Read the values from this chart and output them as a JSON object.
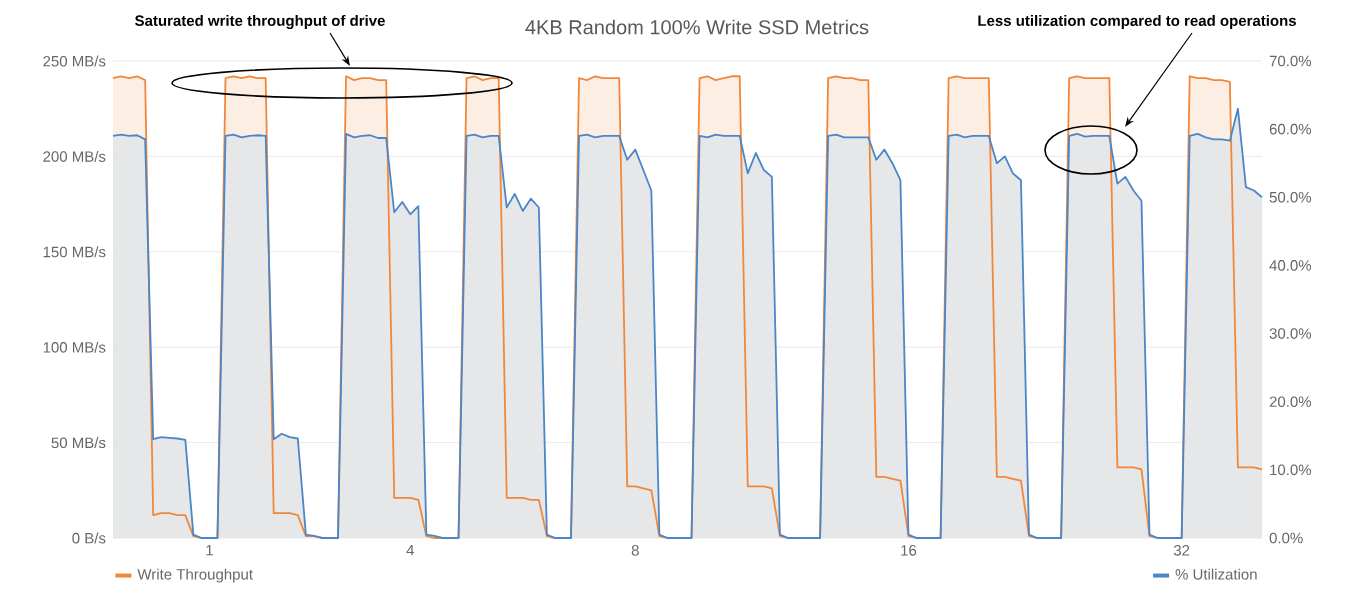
{
  "chart_data": {
    "type": "area",
    "title": "4KB Random 100% Write SSD Metrics",
    "annotations": [
      "Saturated write throughput of drive",
      "Less utilization compared to read operations"
    ],
    "categories": [
      null,
      null,
      null,
      null,
      null,
      null,
      null,
      null,
      null,
      null,
      null,
      null,
      "1",
      null,
      null,
      null,
      null,
      null,
      null,
      null,
      null,
      null,
      null,
      null,
      null,
      null,
      null,
      null,
      null,
      null,
      null,
      null,
      null,
      null,
      null,
      null,
      null,
      "4",
      null,
      null,
      null,
      null,
      null,
      null,
      null,
      null,
      null,
      null,
      null,
      null,
      null,
      null,
      null,
      null,
      null,
      null,
      null,
      null,
      null,
      null,
      null,
      null,
      null,
      null,
      null,
      "8",
      null,
      null,
      null,
      null,
      null,
      null,
      null,
      null,
      null,
      null,
      null,
      null,
      null,
      null,
      null,
      null,
      null,
      null,
      null,
      null,
      null,
      null,
      null,
      null,
      null,
      null,
      null,
      null,
      null,
      null,
      null,
      null,
      null,
      "16",
      null,
      null,
      null,
      null,
      null,
      null,
      null,
      null,
      null,
      null,
      null,
      null,
      null,
      null,
      null,
      null,
      null,
      null,
      null,
      null,
      null,
      null,
      null,
      null,
      null,
      null,
      null,
      null,
      null,
      null,
      null,
      null,
      null,
      "32",
      null,
      null,
      null,
      null,
      null,
      null,
      null,
      null,
      null,
      null
    ],
    "ylim": [
      0,
      250
    ],
    "yticks": [
      {
        "value": 0,
        "label": "0 B/s"
      },
      {
        "value": 50,
        "label": "50 MB/s"
      },
      {
        "value": 100,
        "label": "100 MB/s"
      },
      {
        "value": 150,
        "label": "150 MB/s"
      },
      {
        "value": 200,
        "label": "200 MB/s"
      },
      {
        "value": 250,
        "label": "250 MB/s"
      }
    ],
    "y2lim": [
      0,
      70
    ],
    "y2ticks": [
      {
        "value": 0,
        "label": "0.0%"
      },
      {
        "value": 10,
        "label": "10.0%"
      },
      {
        "value": 20,
        "label": "20.0%"
      },
      {
        "value": 30,
        "label": "30.0%"
      },
      {
        "value": 40,
        "label": "40.0%"
      },
      {
        "value": 50,
        "label": "50.0%"
      },
      {
        "value": 60,
        "label": "60.0%"
      },
      {
        "value": 70,
        "label": "70.0%"
      }
    ],
    "grid": "y",
    "legend": "bottom",
    "series": [
      {
        "name": "Write Throughput",
        "color": "#f0883c",
        "values": [
          241,
          242,
          241,
          242,
          240,
          12,
          13,
          13,
          12,
          12,
          1,
          0,
          0,
          0,
          241,
          242,
          241,
          242,
          241,
          241,
          13,
          13,
          13,
          12,
          1,
          1,
          0,
          0,
          0,
          242,
          240,
          241,
          241,
          240,
          240,
          21,
          21,
          21,
          20,
          1,
          0,
          0,
          0,
          0,
          241,
          242,
          240,
          241,
          241,
          21,
          21,
          21,
          20,
          20,
          1,
          0,
          0,
          0,
          241,
          240,
          242,
          241,
          241,
          241,
          27,
          27,
          26,
          25,
          1,
          0,
          0,
          0,
          0,
          241,
          242,
          240,
          241,
          242,
          242,
          27,
          27,
          27,
          26,
          1,
          0,
          0,
          0,
          0,
          0,
          241,
          242,
          241,
          241,
          240,
          240,
          32,
          32,
          31,
          30,
          1,
          0,
          0,
          0,
          0,
          241,
          242,
          241,
          241,
          241,
          241,
          32,
          32,
          31,
          30,
          1,
          0,
          0,
          0,
          0,
          241,
          242,
          241,
          241,
          241,
          241,
          37,
          37,
          37,
          36,
          1,
          0,
          0,
          0,
          0,
          242,
          241,
          241,
          240,
          240,
          239,
          37,
          37,
          37,
          36
        ]
      },
      {
        "name": "% Utilization",
        "color": "#4a86c8",
        "axis": "y2",
        "values": [
          59,
          59.2,
          59,
          59.1,
          58.5,
          14.5,
          14.8,
          14.7,
          14.6,
          14.4,
          0.5,
          0,
          0,
          0,
          59,
          59.2,
          58.8,
          59,
          59.1,
          59,
          14.5,
          15.3,
          14.8,
          14.6,
          0.5,
          0.3,
          0,
          0,
          0,
          59.3,
          58.8,
          59,
          59.1,
          58.7,
          58.7,
          47.8,
          49.3,
          47.5,
          48.7,
          0.5,
          0.3,
          0,
          0,
          0,
          59,
          59.2,
          58.8,
          59,
          59,
          48.5,
          50.5,
          48,
          49.8,
          48.5,
          0.5,
          0,
          0,
          0,
          59,
          59.2,
          58.8,
          59,
          59,
          59,
          55.5,
          57,
          54,
          51,
          0.5,
          0,
          0,
          0,
          0,
          59,
          58.8,
          59.2,
          59,
          59,
          59,
          53.5,
          56.5,
          54,
          53,
          0.5,
          0,
          0,
          0,
          0,
          0,
          59,
          59.2,
          58.8,
          58.8,
          58.8,
          58.8,
          55.5,
          57,
          55,
          52.5,
          0.5,
          0,
          0,
          0,
          0,
          59,
          59.2,
          58.8,
          59,
          59,
          59,
          55,
          56,
          53.5,
          52.5,
          0.5,
          0,
          0,
          0,
          0,
          59,
          59.3,
          58.9,
          59,
          59,
          59,
          52,
          53,
          51,
          49.5,
          0.5,
          0,
          0,
          0,
          0,
          59,
          59.3,
          58.8,
          58.5,
          58.5,
          58.3,
          63,
          51.5,
          51,
          50
        ]
      }
    ]
  }
}
